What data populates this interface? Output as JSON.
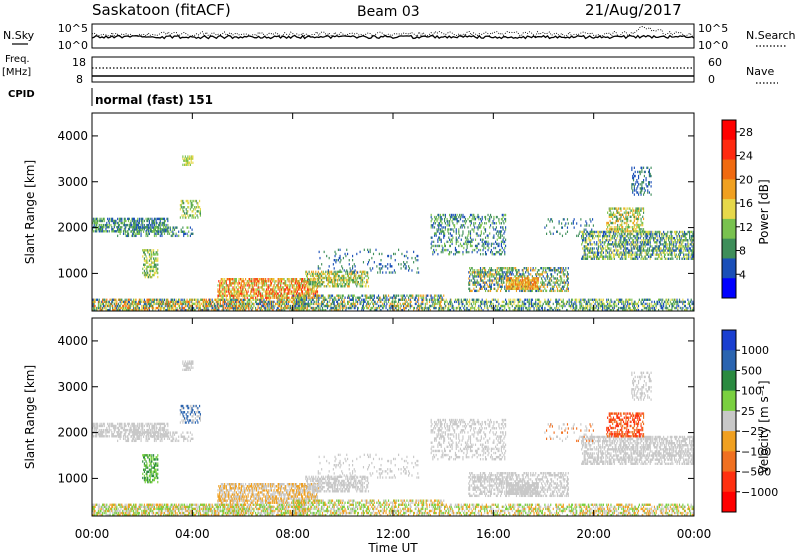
{
  "header": {
    "station": "Saskatoon (fitACF)",
    "beam": "Beam 03",
    "date": "21/Aug/2017"
  },
  "noise_panel": {
    "left_label": "N.Sky",
    "right_label": "N.Search",
    "left_ticks": [
      "10^5",
      "10^0"
    ],
    "right_ticks": [
      "10^5",
      "10^0"
    ]
  },
  "freq_panel": {
    "left_label_1": "Freq.",
    "left_label_2": "[MHz]",
    "left_ticks": [
      "18",
      "8"
    ],
    "right_label": "Nave",
    "right_ticks": [
      "60",
      "0"
    ],
    "cpid_label": "CPID"
  },
  "cpid_panel": {
    "mode": "normal (fast) 151"
  },
  "colors": {
    "power": [
      "#0000ff",
      "#1a4fb8",
      "#3e8e5a",
      "#79c24f",
      "#e6d84a",
      "#f0a020",
      "#f06a10",
      "#ff2a10",
      "#ff0000"
    ],
    "velocity": [
      "#1a3fd0",
      "#2a64b0",
      "#2a8a40",
      "#7ad040",
      "#c8c8c8",
      "#f0a020",
      "#f07020",
      "#ff3010",
      "#ff0000"
    ]
  },
  "chart_data": [
    {
      "type": "heatmap",
      "name": "power",
      "ylabel": "Slant Range [km]",
      "xlabel": "",
      "yticks": [
        "1000",
        "2000",
        "3000",
        "4000"
      ],
      "ylim": [
        180,
        4500
      ],
      "colorbar": {
        "label": "Power [dB]",
        "ticks": [
          "4",
          "8",
          "12",
          "16",
          "20",
          "24",
          "28"
        ],
        "range": [
          0,
          30
        ]
      }
    },
    {
      "type": "heatmap",
      "name": "velocity",
      "ylabel": "Slant Range [km]",
      "xlabel": "Time UT",
      "xticks": [
        "00:00",
        "04:00",
        "08:00",
        "12:00",
        "16:00",
        "20:00",
        "00:00"
      ],
      "yticks": [
        "1000",
        "2000",
        "3000",
        "4000"
      ],
      "ylim": [
        180,
        4500
      ],
      "colorbar": {
        "label": "Velocity [m s⁻¹]",
        "ticks": [
          "1000",
          "500",
          "100",
          "25",
          "−25",
          "−100",
          "−500",
          "−1000"
        ]
      }
    }
  ]
}
